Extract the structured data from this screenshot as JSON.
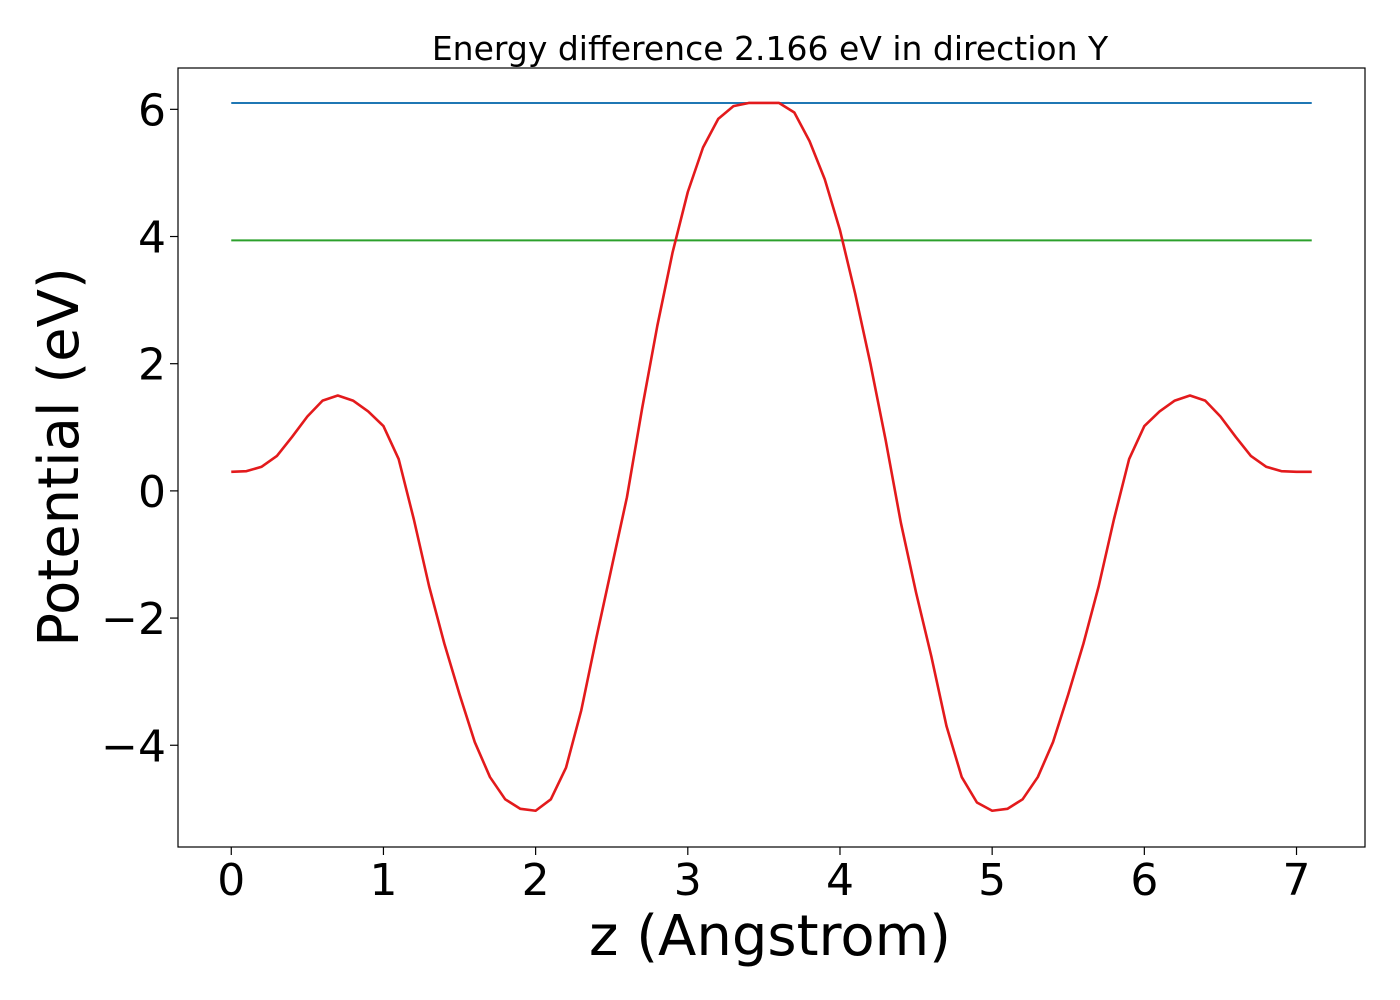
{
  "chart_data": {
    "type": "line",
    "title": "Energy difference 2.166 eV in direction Y",
    "xlabel": "z (Angstrom)",
    "ylabel": "Potential (eV)",
    "xlim": [
      -0.35,
      7.45
    ],
    "ylim": [
      -5.6,
      6.65
    ],
    "xticks": [
      0,
      1,
      2,
      3,
      4,
      5,
      6,
      7
    ],
    "xtick_labels": [
      "0",
      "1",
      "2",
      "3",
      "4",
      "5",
      "6",
      "7"
    ],
    "yticks": [
      -4,
      -2,
      0,
      2,
      4,
      6
    ],
    "ytick_labels": [
      "−4",
      "−2",
      "0",
      "2",
      "4",
      "6"
    ],
    "grid": false,
    "series": [
      {
        "color": "#1f77b4",
        "x": [
          0,
          7.1
        ],
        "y": [
          6.1,
          6.1
        ]
      },
      {
        "color": "#2ca02c",
        "x": [
          0,
          7.1
        ],
        "y": [
          3.94,
          3.94
        ]
      },
      {
        "color": "#e31a1c",
        "x": [
          0.0,
          0.1,
          0.2,
          0.3,
          0.4,
          0.5,
          0.6,
          0.7,
          0.8,
          0.9,
          1.0,
          1.1,
          1.2,
          1.3,
          1.4,
          1.5,
          1.6,
          1.7,
          1.8,
          1.9,
          2.0,
          2.1,
          2.2,
          2.3,
          2.4,
          2.5,
          2.6,
          2.7,
          2.8,
          2.9,
          3.0,
          3.1,
          3.2,
          3.3,
          3.4,
          3.5,
          3.55,
          3.6,
          3.7,
          3.8,
          3.9,
          4.0,
          4.1,
          4.2,
          4.3,
          4.4,
          4.5,
          4.6,
          4.7,
          4.8,
          4.9,
          5.0,
          5.1,
          5.2,
          5.3,
          5.4,
          5.5,
          5.6,
          5.7,
          5.8,
          5.9,
          6.0,
          6.1,
          6.2,
          6.3,
          6.4,
          6.5,
          6.6,
          6.7,
          6.8,
          6.9,
          7.0,
          7.1
        ],
        "y": [
          0.3,
          0.31,
          0.38,
          0.55,
          0.85,
          1.17,
          1.42,
          1.5,
          1.42,
          1.25,
          1.02,
          0.5,
          -0.45,
          -1.5,
          -2.4,
          -3.2,
          -3.95,
          -4.5,
          -4.85,
          -5.0,
          -5.03,
          -4.85,
          -4.35,
          -3.45,
          -2.3,
          -1.2,
          -0.1,
          1.3,
          2.6,
          3.75,
          4.7,
          5.4,
          5.85,
          6.05,
          6.1,
          6.1,
          6.1,
          6.1,
          5.95,
          5.5,
          4.9,
          4.1,
          3.1,
          2.0,
          0.8,
          -0.5,
          -1.6,
          -2.6,
          -3.7,
          -4.5,
          -4.9,
          -5.03,
          -5.0,
          -4.85,
          -4.5,
          -3.95,
          -3.2,
          -2.4,
          -1.5,
          -0.45,
          0.5,
          1.02,
          1.25,
          1.42,
          1.5,
          1.42,
          1.17,
          0.85,
          0.55,
          0.38,
          0.31,
          0.3,
          0.3
        ]
      }
    ]
  }
}
